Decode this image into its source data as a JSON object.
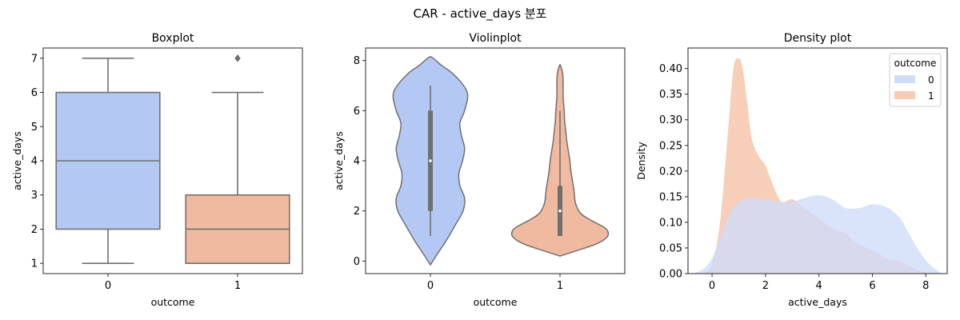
{
  "figure": {
    "title": "CAR - active_days 분포"
  },
  "colors": {
    "c0": "#b4c8f4",
    "c1": "#f0baa0",
    "d0": "#cfdcf9",
    "d1": "#f7cbb4",
    "line": "#707070",
    "frame": "#262626"
  },
  "chart_data": [
    {
      "type": "box",
      "title": "Boxplot",
      "xlabel": "outcome",
      "ylabel": "active_days",
      "categories": [
        "0",
        "1"
      ],
      "ylim": [
        0.7,
        7.3
      ],
      "yticks": [
        1,
        2,
        3,
        4,
        5,
        6,
        7
      ],
      "boxes": [
        {
          "category": "0",
          "whisker_low": 1,
          "q1": 2,
          "median": 4,
          "q3": 6,
          "whisker_high": 7,
          "outliers": []
        },
        {
          "category": "1",
          "whisker_low": 1,
          "q1": 1,
          "median": 2,
          "q3": 3,
          "whisker_high": 6,
          "outliers": [
            7,
            7,
            7
          ]
        }
      ]
    },
    {
      "type": "violin",
      "title": "Violinplot",
      "xlabel": "outcome",
      "ylabel": "active_days",
      "categories": [
        "0",
        "1"
      ],
      "ylim": [
        -0.5,
        8.5
      ],
      "yticks": [
        0,
        2,
        4,
        6,
        8
      ],
      "violins": [
        {
          "category": "0",
          "q1": 2,
          "median": 4,
          "q3": 6,
          "whisker_low": 1,
          "whisker_high": 7,
          "profile": [
            [
              -0.15,
              0.0
            ],
            [
              0.3,
              0.14
            ],
            [
              0.8,
              0.3
            ],
            [
              1.4,
              0.47
            ],
            [
              2.0,
              0.63
            ],
            [
              2.5,
              0.66
            ],
            [
              3.0,
              0.57
            ],
            [
              3.5,
              0.55
            ],
            [
              4.0,
              0.62
            ],
            [
              4.5,
              0.66
            ],
            [
              5.0,
              0.6
            ],
            [
              5.5,
              0.57
            ],
            [
              6.0,
              0.66
            ],
            [
              6.6,
              0.72
            ],
            [
              7.0,
              0.64
            ],
            [
              7.5,
              0.42
            ],
            [
              7.8,
              0.22
            ],
            [
              8.1,
              0.05
            ],
            [
              8.15,
              0.0
            ]
          ]
        },
        {
          "category": "1",
          "q1": 1,
          "median": 2,
          "q3": 3,
          "whisker_low": 1,
          "whisker_high": 6,
          "profile": [
            [
              0.2,
              0.0
            ],
            [
              0.4,
              0.3
            ],
            [
              0.7,
              0.72
            ],
            [
              1.0,
              0.92
            ],
            [
              1.3,
              0.88
            ],
            [
              1.6,
              0.62
            ],
            [
              1.9,
              0.4
            ],
            [
              2.3,
              0.3
            ],
            [
              2.8,
              0.27
            ],
            [
              3.2,
              0.24
            ],
            [
              3.6,
              0.21
            ],
            [
              4.0,
              0.19
            ],
            [
              4.4,
              0.16
            ],
            [
              4.8,
              0.13
            ],
            [
              5.2,
              0.11
            ],
            [
              5.6,
              0.09
            ],
            [
              6.0,
              0.08
            ],
            [
              6.6,
              0.06
            ],
            [
              7.1,
              0.06
            ],
            [
              7.5,
              0.05
            ],
            [
              7.8,
              0.01
            ]
          ]
        }
      ]
    },
    {
      "type": "area",
      "title": "Density plot",
      "xlabel": "active_days",
      "ylabel": "Density",
      "xlim": [
        -0.9,
        8.8
      ],
      "ylim": [
        0,
        0.44
      ],
      "xticks": [
        0,
        2,
        4,
        6,
        8
      ],
      "yticks": [
        0.0,
        0.05,
        0.1,
        0.15,
        0.2,
        0.25,
        0.3,
        0.35,
        0.4
      ],
      "legend": {
        "title": "outcome",
        "position": "top-right",
        "entries": [
          "0",
          "1"
        ]
      },
      "series": [
        {
          "name": "0",
          "x": [
            -0.7,
            -0.3,
            0.0,
            0.3,
            0.6,
            0.9,
            1.2,
            1.5,
            2.0,
            2.5,
            3.0,
            3.5,
            4.0,
            4.5,
            5.0,
            5.5,
            6.0,
            6.5,
            7.0,
            7.4,
            7.8,
            8.2,
            8.6
          ],
          "y": [
            0.0,
            0.01,
            0.03,
            0.07,
            0.11,
            0.135,
            0.145,
            0.148,
            0.145,
            0.14,
            0.14,
            0.148,
            0.153,
            0.145,
            0.128,
            0.128,
            0.135,
            0.13,
            0.11,
            0.075,
            0.04,
            0.015,
            0.0
          ]
        },
        {
          "name": "1",
          "x": [
            -0.3,
            0.0,
            0.3,
            0.6,
            0.8,
            1.0,
            1.15,
            1.3,
            1.5,
            1.8,
            2.0,
            2.3,
            2.6,
            3.0,
            3.4,
            3.8,
            4.2,
            4.6,
            5.0,
            5.4,
            5.8,
            6.2,
            6.6,
            7.0,
            7.4,
            7.8,
            8.2
          ],
          "y": [
            0.0,
            0.02,
            0.1,
            0.28,
            0.4,
            0.42,
            0.4,
            0.34,
            0.26,
            0.225,
            0.21,
            0.17,
            0.14,
            0.145,
            0.13,
            0.115,
            0.1,
            0.085,
            0.078,
            0.06,
            0.05,
            0.04,
            0.028,
            0.025,
            0.015,
            0.005,
            0.0
          ]
        }
      ]
    }
  ]
}
